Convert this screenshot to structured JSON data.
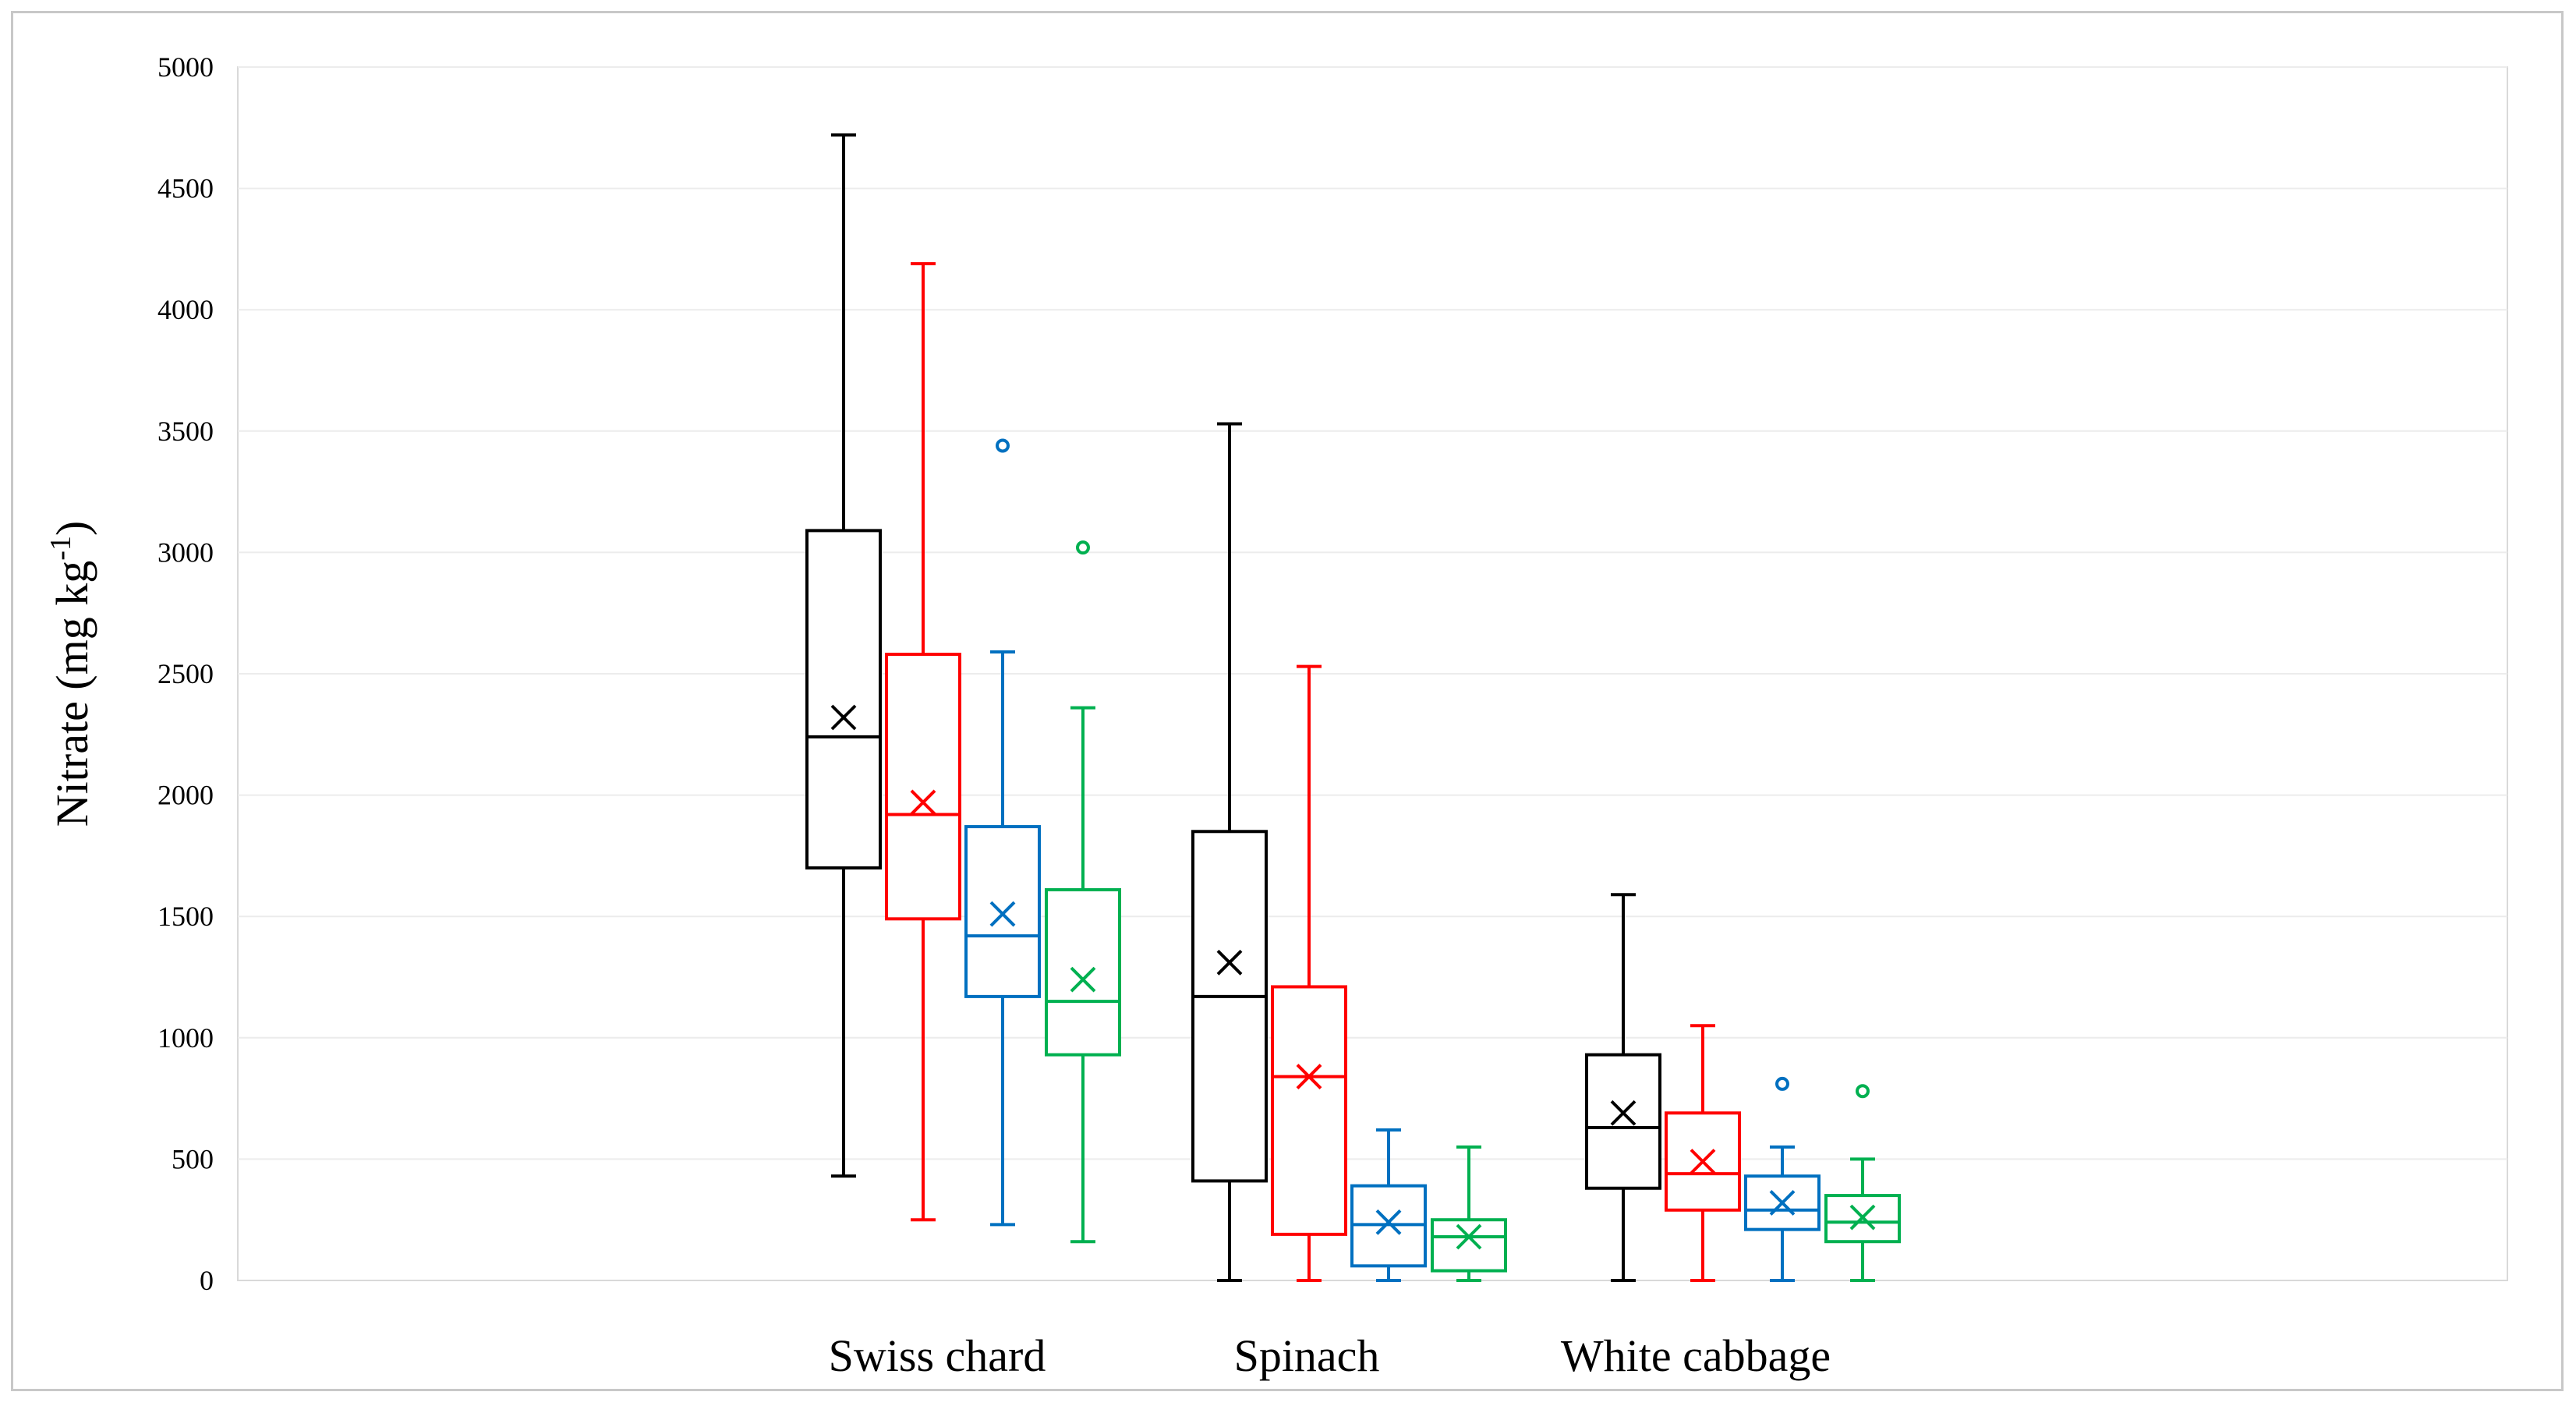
{
  "chart_data": {
    "type": "boxplot",
    "ylabel": {
      "text": "Nitrate  (mg kg",
      "sup": "-1",
      "close": ")"
    },
    "ylim": [
      0,
      5000
    ],
    "yticks": [
      0,
      500,
      1000,
      1500,
      2000,
      2500,
      3000,
      3500,
      4000,
      4500,
      5000
    ],
    "grid": true,
    "categories": [
      "Swiss chard",
      "Spinach",
      "White cabbage"
    ],
    "series_colors": [
      "#000000",
      "#ff0000",
      "#0070c0",
      "#00b050"
    ],
    "groups": [
      {
        "category": "Swiss chard",
        "boxes": [
          {
            "min": 430,
            "q1": 1700,
            "median": 2240,
            "q3": 3090,
            "max": 4720,
            "mean": 2320,
            "outliers": []
          },
          {
            "min": 250,
            "q1": 1490,
            "median": 1920,
            "q3": 2580,
            "max": 4190,
            "mean": 1970,
            "outliers": []
          },
          {
            "min": 230,
            "q1": 1170,
            "median": 1420,
            "q3": 1870,
            "max": 2590,
            "mean": 1510,
            "outliers": [
              3440
            ]
          },
          {
            "min": 160,
            "q1": 930,
            "median": 1150,
            "q3": 1610,
            "max": 2360,
            "mean": 1240,
            "outliers": [
              3020
            ]
          }
        ]
      },
      {
        "category": "Spinach",
        "boxes": [
          {
            "min": 0,
            "q1": 410,
            "median": 1170,
            "q3": 1850,
            "max": 3530,
            "mean": 1310,
            "outliers": []
          },
          {
            "min": 0,
            "q1": 190,
            "median": 840,
            "q3": 1210,
            "max": 2530,
            "mean": 840,
            "outliers": []
          },
          {
            "min": 0,
            "q1": 60,
            "median": 230,
            "q3": 390,
            "max": 620,
            "mean": 240,
            "outliers": []
          },
          {
            "min": 0,
            "q1": 40,
            "median": 180,
            "q3": 250,
            "max": 550,
            "mean": 180,
            "outliers": []
          }
        ]
      },
      {
        "category": "White cabbage",
        "boxes": [
          {
            "min": 0,
            "q1": 380,
            "median": 630,
            "q3": 930,
            "max": 1590,
            "mean": 690,
            "outliers": []
          },
          {
            "min": 0,
            "q1": 290,
            "median": 440,
            "q3": 690,
            "max": 1050,
            "mean": 490,
            "outliers": []
          },
          {
            "min": 0,
            "q1": 210,
            "median": 290,
            "q3": 430,
            "max": 550,
            "mean": 320,
            "outliers": [
              810
            ]
          },
          {
            "min": 0,
            "q1": 160,
            "median": 240,
            "q3": 350,
            "max": 500,
            "mean": 260,
            "outliers": [
              780
            ]
          }
        ]
      }
    ]
  }
}
